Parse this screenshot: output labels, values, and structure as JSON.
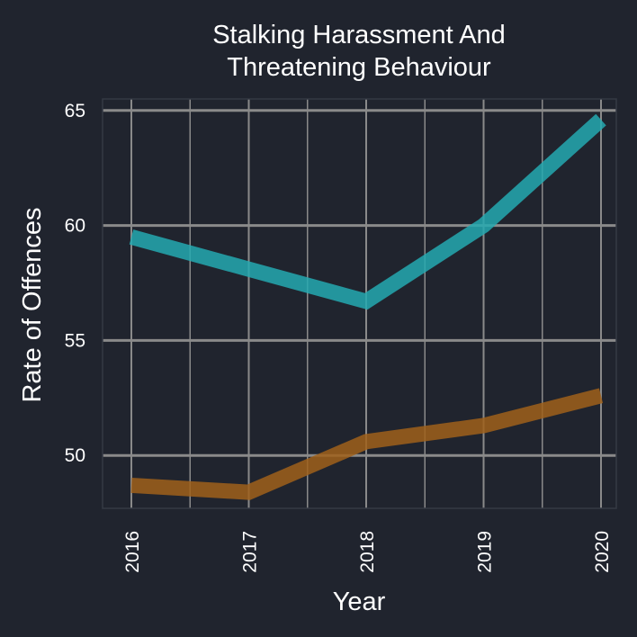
{
  "chart_data": {
    "type": "line",
    "title_lines": [
      "Stalking Harassment And",
      "Threatening Behaviour"
    ],
    "xlabel": "Year",
    "ylabel": "Rate of Offences",
    "x": [
      "2016",
      "2017",
      "2018",
      "2019",
      "2020"
    ],
    "y_ticks": [
      50,
      55,
      60,
      65
    ],
    "ylim": [
      47.7,
      65.5
    ],
    "grid": true,
    "legend": "none",
    "series": [
      {
        "color": "#25a9b0",
        "values": [
          59.5,
          58.1,
          56.7,
          60.0,
          64.6
        ]
      },
      {
        "color": "#a0601a",
        "values": [
          48.7,
          48.4,
          50.6,
          51.3,
          52.6
        ]
      }
    ]
  },
  "colors": {
    "background": "#20242e",
    "panel_border": "#343944",
    "major_grid": "#8a8a8a",
    "minor_grid": "#8a8a8a",
    "text": "#ffffff"
  }
}
